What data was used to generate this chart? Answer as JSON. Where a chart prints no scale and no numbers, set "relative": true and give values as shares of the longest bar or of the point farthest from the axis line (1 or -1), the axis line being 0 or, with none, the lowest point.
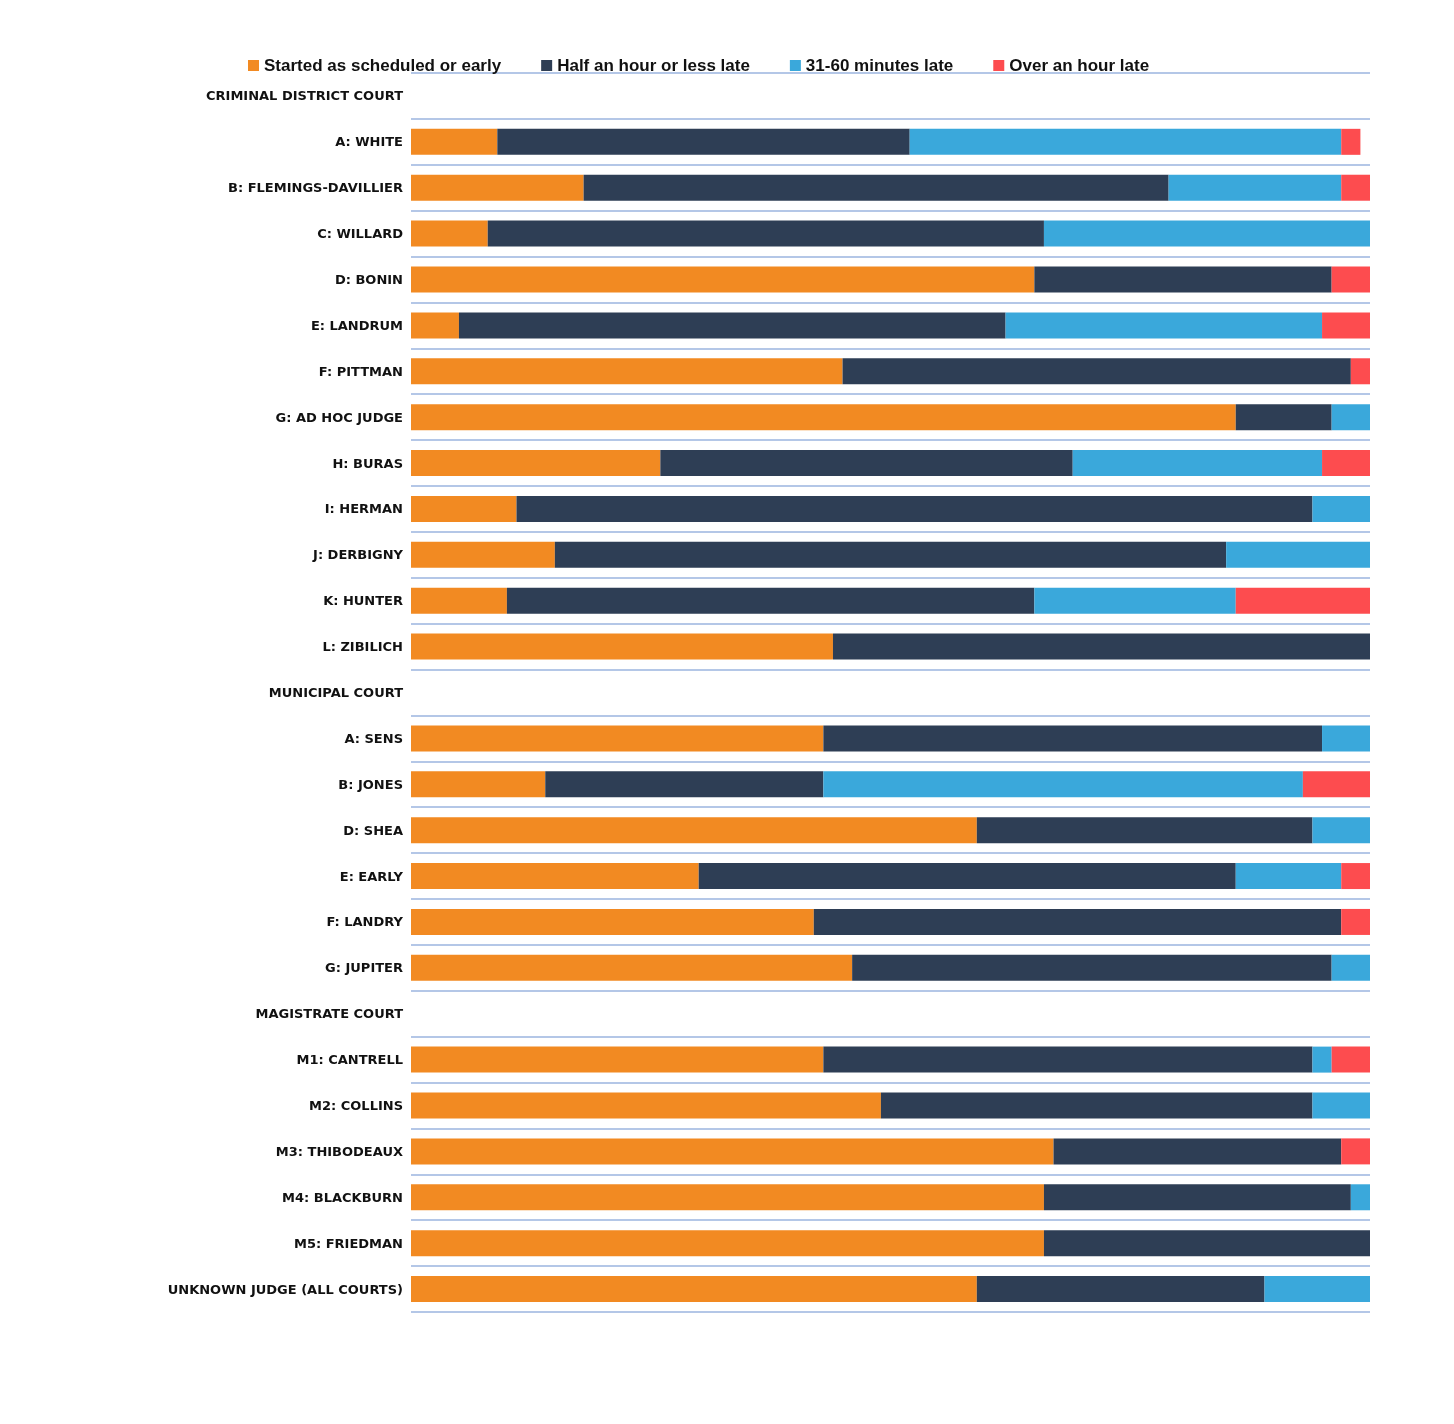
{
  "chart_data": {
    "type": "bar",
    "orientation": "horizontal",
    "stacked": true,
    "relative": true,
    "grid": "y",
    "legend": "top",
    "categories": [
      "CRIMINAL DISTRICT COURT",
      "A: WHITE",
      "B: FLEMINGS-DAVILLIER",
      "C: WILLARD",
      "D: BONIN",
      "E: LANDRUM",
      "F: PITTMAN",
      "G: AD HOC JUDGE",
      "H: BURAS",
      "I: HERMAN",
      "J: DERBIGNY",
      "K: HUNTER",
      "L: ZIBILICH",
      "MUNICIPAL COURT",
      "A: SENS",
      "B: JONES",
      "D: SHEA",
      "E: EARLY",
      "F: LANDRY",
      "G: JUPITER",
      "MAGISTRATE COURT",
      "M1: CANTRELL",
      "M2: COLLINS",
      "M3: THIBODEAUX",
      "M4: BLACKBURN",
      "M5: FRIEDMAN",
      "UNKNOWN JUDGE (ALL COURTS)"
    ],
    "series": [
      {
        "name": "Started as scheduled or early",
        "color": "#f28a22",
        "values": [
          null,
          0.09,
          0.18,
          0.08,
          0.65,
          0.05,
          0.45,
          0.86,
          0.26,
          0.11,
          0.15,
          0.1,
          0.44,
          null,
          0.43,
          0.14,
          0.59,
          0.3,
          0.42,
          0.46,
          null,
          0.43,
          0.49,
          0.67,
          0.66,
          0.66,
          0.59
        ]
      },
      {
        "name": "Half an hour or less late",
        "color": "#2e3e55",
        "values": [
          null,
          0.43,
          0.61,
          0.58,
          0.31,
          0.57,
          0.53,
          0.1,
          0.43,
          0.83,
          0.7,
          0.55,
          0.56,
          null,
          0.52,
          0.29,
          0.35,
          0.56,
          0.55,
          0.5,
          null,
          0.51,
          0.45,
          0.3,
          0.32,
          0.34,
          0.3
        ]
      },
      {
        "name": "31-60 minutes late",
        "color": "#3aa8db",
        "values": [
          null,
          0.45,
          0.18,
          0.34,
          null,
          0.33,
          null,
          0.04,
          0.26,
          0.06,
          0.15,
          0.21,
          null,
          null,
          0.05,
          0.5,
          0.06,
          0.11,
          null,
          0.04,
          null,
          0.02,
          0.06,
          null,
          0.02,
          null,
          0.11
        ]
      },
      {
        "name": "Over an hour late",
        "color": "#fd4c4f",
        "values": [
          null,
          0.02,
          0.03,
          null,
          0.04,
          0.05,
          0.02,
          null,
          0.05,
          null,
          null,
          0.14,
          null,
          null,
          null,
          0.07,
          null,
          0.03,
          0.03,
          null,
          null,
          0.04,
          null,
          0.03,
          null,
          null,
          null
        ]
      }
    ]
  }
}
